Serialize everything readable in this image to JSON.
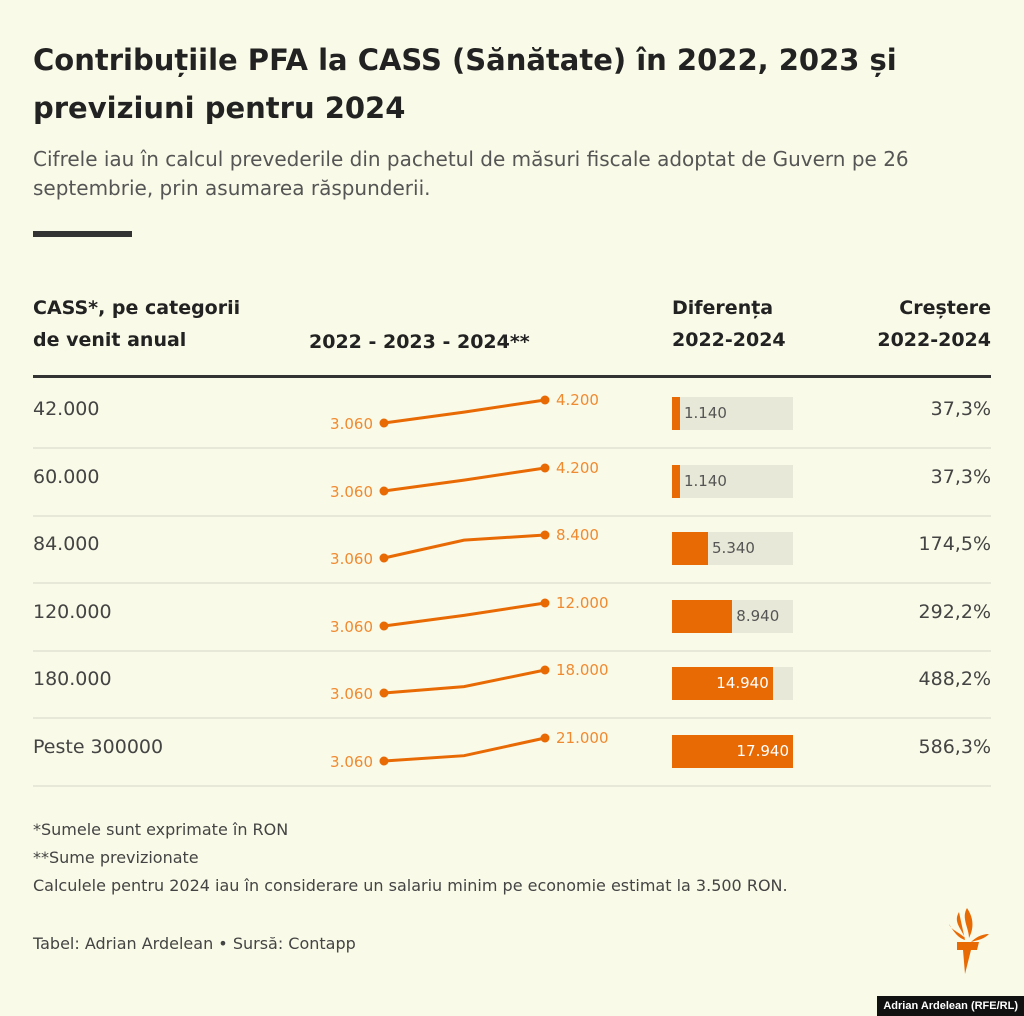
{
  "title": "Contribuțiile PFA la CASS (Sănătate) în 2022, 2023 și previziuni pentru 2024",
  "subtitle": "Cifrele iau în calcul prevederile din pachetul de măsuri fiscale adoptat de Guvern pe 26 septembrie, prin asumarea răspunderii.",
  "headers": {
    "category": "CASS*, pe categorii de venit anual",
    "trend": "2022 - 2023 - 2024**",
    "diff": "Diferența 2022-2024",
    "growth": "Creștere 2022-2024"
  },
  "colors": {
    "accent": "#e86a05",
    "bar_bg": "#e8e8d8",
    "background": "#fafae8"
  },
  "chart_data": {
    "type": "table",
    "years": [
      "2022",
      "2023",
      "2024"
    ],
    "rows": [
      {
        "category": "42.000",
        "values": [
          3060,
          3600,
          4200
        ],
        "label_2022": "3.060",
        "label_2024": "4.200",
        "diff": 1140,
        "diff_label": "1.140",
        "growth": "37,3%"
      },
      {
        "category": "60.000",
        "values": [
          3060,
          3600,
          4200
        ],
        "label_2022": "3.060",
        "label_2024": "4.200",
        "diff": 1140,
        "diff_label": "1.140",
        "growth": "37,3%"
      },
      {
        "category": "84.000",
        "values": [
          3060,
          7200,
          8400
        ],
        "label_2022": "3.060",
        "label_2024": "8.400",
        "diff": 5340,
        "diff_label": "5.340",
        "growth": "174,5%"
      },
      {
        "category": "120.000",
        "values": [
          3060,
          7200,
          12000
        ],
        "label_2022": "3.060",
        "label_2024": "12.000",
        "diff": 8940,
        "diff_label": "8.940",
        "growth": "292,2%"
      },
      {
        "category": "180.000",
        "values": [
          3060,
          7200,
          18000
        ],
        "label_2022": "3.060",
        "label_2024": "18.000",
        "diff": 14940,
        "diff_label": "14.940",
        "growth": "488,2%"
      },
      {
        "category": "Peste 300000",
        "values": [
          3060,
          7200,
          21000
        ],
        "label_2022": "3.060",
        "label_2024": "21.000",
        "diff": 17940,
        "diff_label": "17.940",
        "growth": "586,3%"
      }
    ],
    "diff_max": 17940
  },
  "footnotes": [
    "*Sumele sunt exprimate în RON",
    "**Sume previzionate",
    "Calculele pentru 2024 iau în considerare un salariu minim pe economie estimat la 3.500 RON."
  ],
  "source": "Tabel: Adrian Ardelean • Sursă: Contapp",
  "credit": "Adrian Ardelean (RFE/RL)",
  "logo": "rfe-rl-torch-icon"
}
